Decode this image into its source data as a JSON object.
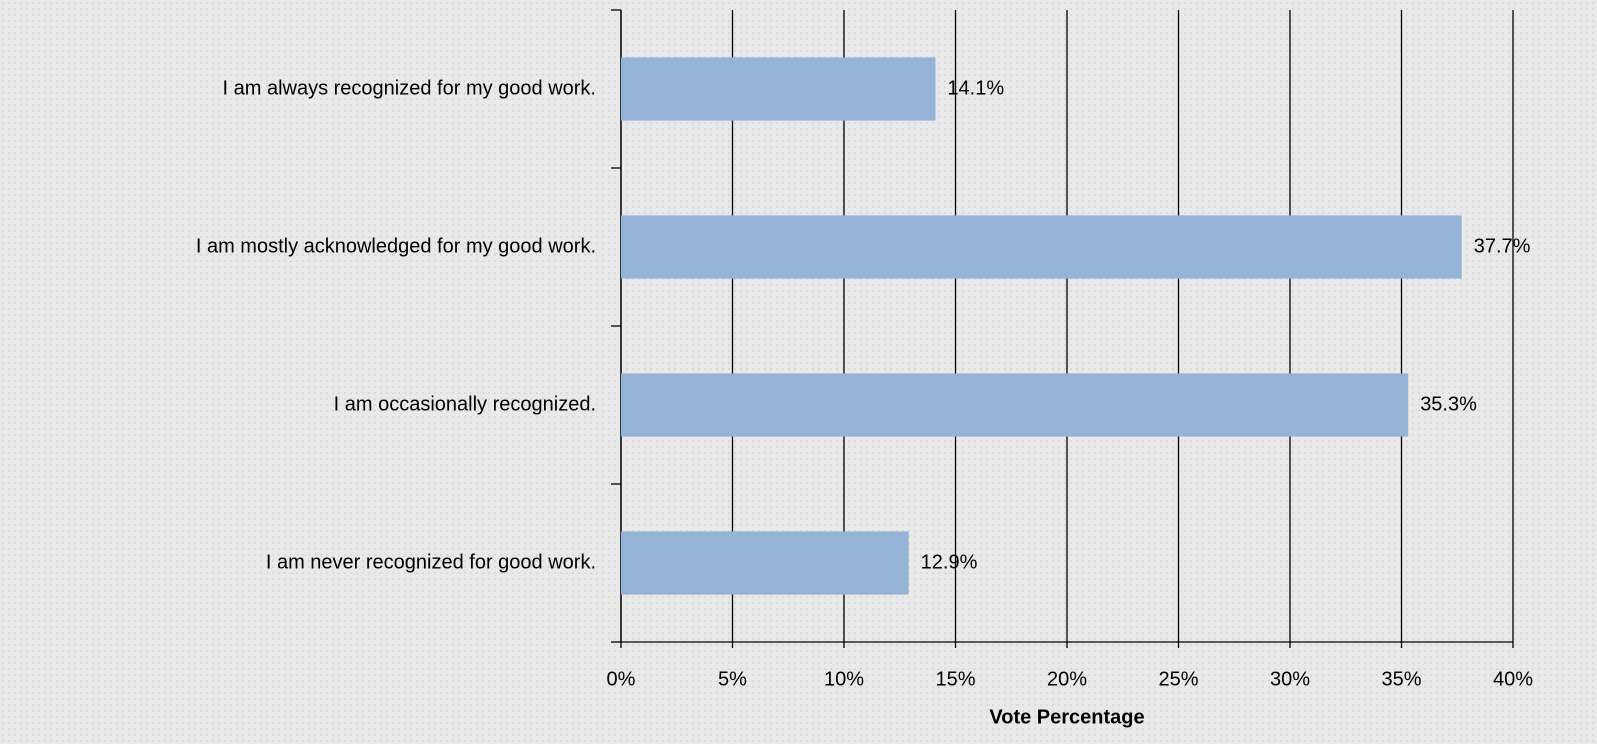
{
  "chart_data": {
    "type": "hbar",
    "categories": [
      "I am always recognized for my good work.",
      "I am mostly acknowledged for my good work.",
      "I am occasionally recognized.",
      "I am never recognized for good work."
    ],
    "values": [
      14.1,
      37.7,
      35.3,
      12.9
    ],
    "value_labels": [
      "14.1%",
      "37.7%",
      "35.3%",
      "12.9%"
    ],
    "color": "#95b3d7",
    "xlabel": "Vote Percentage",
    "xlim": [
      0,
      40
    ],
    "xticks": [
      {
        "value": 0,
        "label": "0%"
      },
      {
        "value": 5,
        "label": "5%"
      },
      {
        "value": 10,
        "label": "10%"
      },
      {
        "value": 15,
        "label": "15%"
      },
      {
        "value": 20,
        "label": "20%"
      },
      {
        "value": 25,
        "label": "25%"
      },
      {
        "value": 30,
        "label": "30%"
      },
      {
        "value": 35,
        "label": "35%"
      },
      {
        "value": 40,
        "label": "40%"
      }
    ],
    "grid": true
  }
}
